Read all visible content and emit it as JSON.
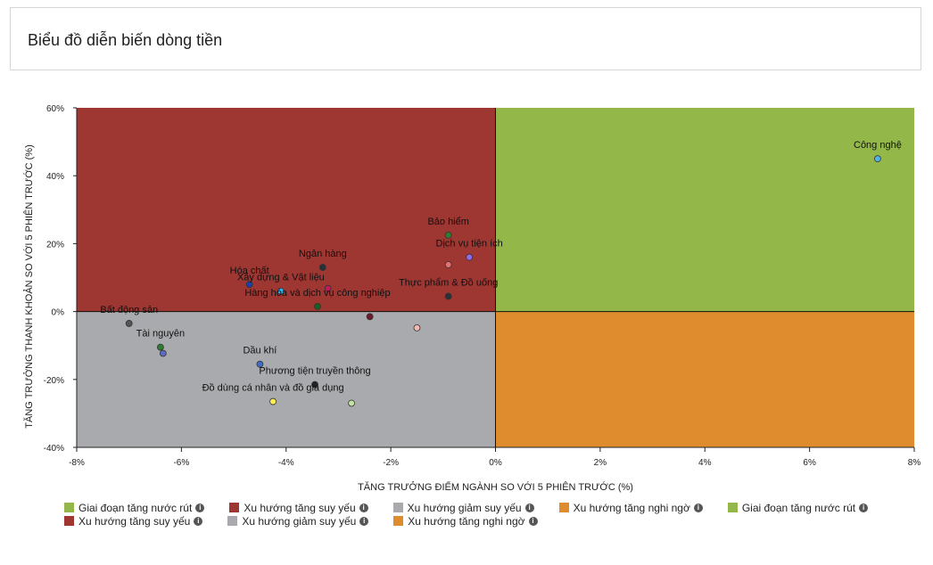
{
  "header": {
    "title": "Biểu đồ diễn biến dòng tiền"
  },
  "chart_data": {
    "type": "scatter",
    "xlabel": "TĂNG TRƯỞNG ĐIỂM NGÀNH SO VỚI 5 PHIÊN TRƯỚC (%)",
    "ylabel": "TĂNG TRƯỞNG THANH KHOẢN SO VỚI 5 PHIÊN TRƯỚC (%)",
    "xlim": [
      -8,
      8
    ],
    "ylim": [
      -40,
      60
    ],
    "x_ticks": [
      "-8%",
      "-6%",
      "-4%",
      "-2%",
      "0%",
      "2%",
      "4%",
      "6%",
      "8%"
    ],
    "y_ticks": [
      "60%",
      "40%",
      "20%",
      "0%",
      "-20%",
      "-40%"
    ],
    "x_tick_values": [
      -8,
      -6,
      -4,
      -2,
      0,
      2,
      4,
      6,
      8
    ],
    "y_tick_values": [
      60,
      40,
      20,
      0,
      -20,
      -40
    ],
    "quadrant_colors": {
      "top_left": "#9e3632",
      "top_right": "#94b74a",
      "bottom_left": "#a9aaad",
      "bottom_right": "#de8c2d"
    },
    "points": [
      {
        "label": "Công nghệ",
        "x": 7.3,
        "y": 45,
        "color": "#4fb3e8"
      },
      {
        "label": "Bảo hiểm",
        "x": -0.9,
        "y": 22.5,
        "color": "#2e7d32"
      },
      {
        "label": "Dịch vụ tiện ích",
        "x": -0.5,
        "y": 16,
        "color": "#8e6cf0"
      },
      {
        "label": "",
        "x": -0.9,
        "y": 13.8,
        "color": "#e57373"
      },
      {
        "label": "Thực phẩm & Đồ uống",
        "x": -0.9,
        "y": 4.5,
        "color": "#263238"
      },
      {
        "label": "Ngân hàng",
        "x": -3.3,
        "y": 13,
        "color": "#263238"
      },
      {
        "label": "Hóa chất",
        "x": -4.7,
        "y": 8,
        "color": "#1e3fa8"
      },
      {
        "label": "Xây dựng & Vật liệu",
        "x": -4.1,
        "y": 6,
        "color": "#29b6f6"
      },
      {
        "label": "",
        "x": -3.2,
        "y": 6.8,
        "color": "#c2185b"
      },
      {
        "label": "Hàng hóa và dịch vụ công nghiệp",
        "x": -3.4,
        "y": 1.5,
        "color": "#1b5e20"
      },
      {
        "label": "",
        "x": -2.4,
        "y": -1.5,
        "color": "#6d1b2a"
      },
      {
        "label": "",
        "x": -1.5,
        "y": -4.8,
        "color": "#f5b7b1"
      },
      {
        "label": "Bất động sản",
        "x": -7,
        "y": -3.5,
        "color": "#555555"
      },
      {
        "label": "Tài nguyên",
        "x": -6.4,
        "y": -10.5,
        "color": "#2e7d32"
      },
      {
        "label": "",
        "x": -6.35,
        "y": -12.3,
        "color": "#5c6bc0"
      },
      {
        "label": "Dầu khí",
        "x": -4.5,
        "y": -15.5,
        "color": "#3f6cc4"
      },
      {
        "label": "Phương tiện truyền thông",
        "x": -3.45,
        "y": -21.5,
        "color": "#222222"
      },
      {
        "label": "Đồ dùng cá nhân và đồ gia dụng",
        "x": -4.25,
        "y": -26.5,
        "color": "#ffee58"
      },
      {
        "label": "",
        "x": -2.75,
        "y": -27,
        "color": "#c5e1a5"
      }
    ],
    "legend": [
      {
        "label": "Giai đoạn tăng nước rút",
        "color": "#94b74a"
      },
      {
        "label": "Xu hướng tăng suy yếu",
        "color": "#9e3632"
      },
      {
        "label": "Xu hướng giảm suy yếu",
        "color": "#a9aaad"
      },
      {
        "label": "Xu hướng tăng nghi ngờ",
        "color": "#de8c2d"
      },
      {
        "label": "Giai đoạn tăng nước rút",
        "color": "#94b74a"
      },
      {
        "label": "Xu hướng tăng suy yếu",
        "color": "#9e3632"
      },
      {
        "label": "Xu hướng giảm suy yếu",
        "color": "#a9aaad"
      },
      {
        "label": "Xu hướng tăng nghi ngờ",
        "color": "#de8c2d"
      }
    ],
    "legend_info_icon": "info-circle-icon"
  }
}
